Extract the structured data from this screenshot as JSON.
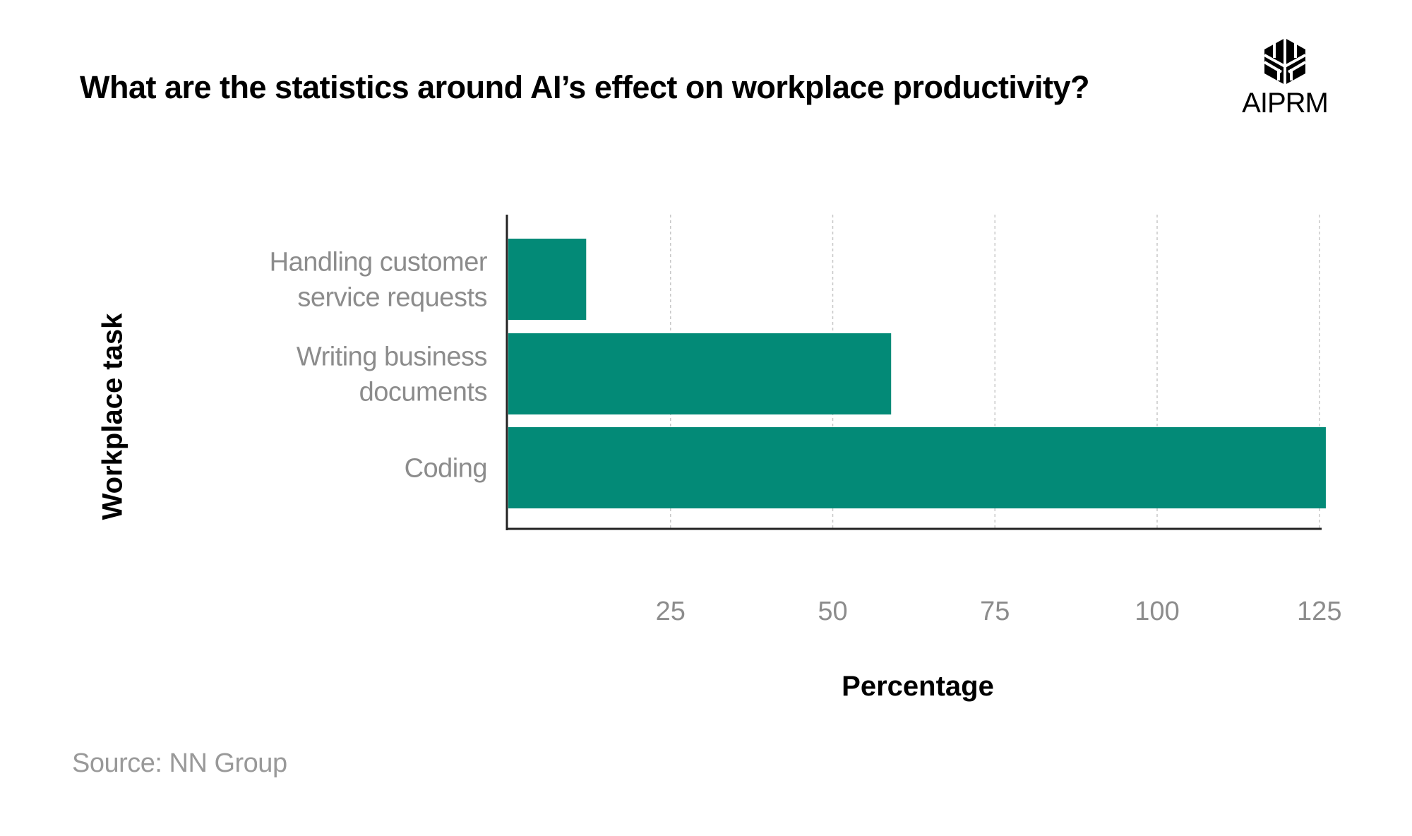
{
  "title": "What are the statistics around AI’s effect on workplace productivity?",
  "logo": {
    "text": "AIPRM",
    "icon": "aiprm-cube-logo"
  },
  "source": "Source:  NN Group",
  "chart_data": {
    "type": "bar",
    "orientation": "horizontal",
    "categories": [
      [
        "Handling customer",
        "service requests"
      ],
      [
        "Writing business",
        "documents"
      ],
      [
        "Coding"
      ]
    ],
    "values": [
      12,
      59,
      126
    ],
    "xlabel": "Percentage",
    "ylabel": "Workplace task",
    "xlim": [
      0,
      125
    ],
    "xticks": [
      25,
      50,
      75,
      100,
      125
    ],
    "grid": "vertical dashed",
    "bar_color": "#038a77"
  }
}
